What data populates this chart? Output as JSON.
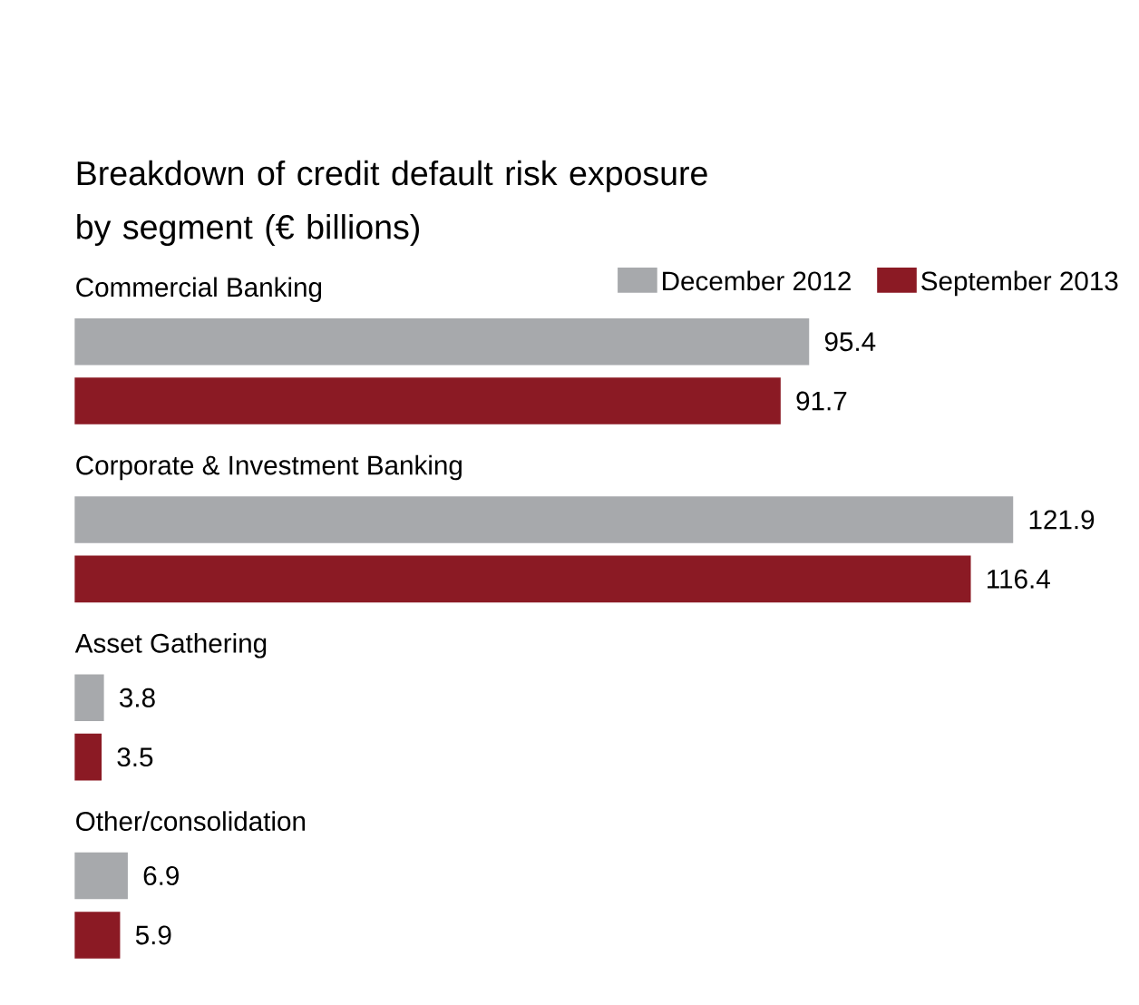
{
  "chart_data": {
    "type": "bar",
    "orientation": "horizontal",
    "title": "Breakdown of credit default risk exposure by segment (€ billions)",
    "categories": [
      "Commercial Banking",
      "Corporate & Investment Banking",
      "Asset Gathering",
      "Other/consolidation"
    ],
    "series": [
      {
        "name": "December 2012",
        "color": "#a7a9ac",
        "values": [
          95.4,
          121.9,
          3.8,
          6.9
        ]
      },
      {
        "name": "September 2013",
        "color": "#8b1a24",
        "values": [
          91.7,
          116.4,
          3.5,
          5.9
        ]
      }
    ],
    "data_labels": true,
    "legend": "top right"
  }
}
